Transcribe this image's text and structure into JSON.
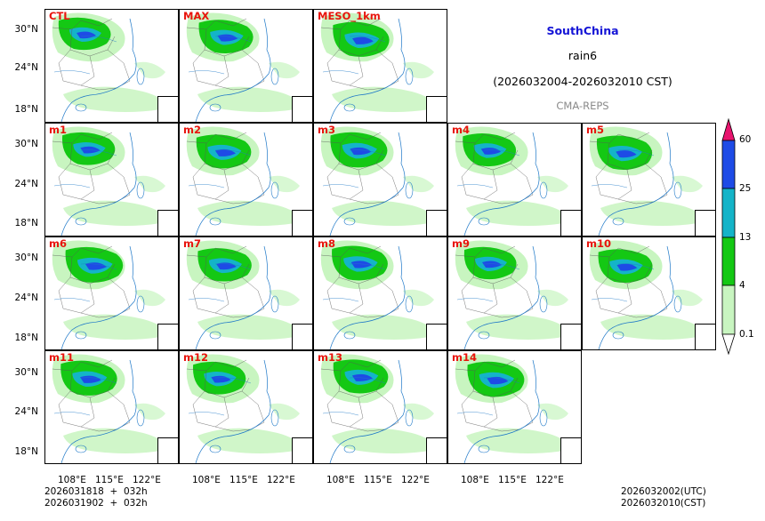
{
  "region": "SouthChina",
  "variable": "rain6",
  "period": "(2026032004-2026032010 CST)",
  "model": "CMA-REPS",
  "panels": [
    {
      "label": "CTL"
    },
    {
      "label": "MAX"
    },
    {
      "label": "MESO_1km"
    },
    {
      "label": "m1"
    },
    {
      "label": "m2"
    },
    {
      "label": "m3"
    },
    {
      "label": "m4"
    },
    {
      "label": "m5"
    },
    {
      "label": "m6"
    },
    {
      "label": "m7"
    },
    {
      "label": "m8"
    },
    {
      "label": "m9"
    },
    {
      "label": "m10"
    },
    {
      "label": "m11"
    },
    {
      "label": "m12"
    },
    {
      "label": "m13"
    },
    {
      "label": "m14"
    }
  ],
  "lat_ticks": [
    "30°N",
    "24°N",
    "18°N"
  ],
  "lon_ticks": [
    "108°E",
    "115°E",
    "122°E"
  ],
  "colorbar": {
    "levels": [
      "60",
      "25",
      "13",
      "4",
      "0.1"
    ],
    "colors": {
      "over": "#e8146e",
      "band_25_60": "#1e4be6",
      "band_13_25": "#14b4c8",
      "band_4_13": "#14c814",
      "band_01_4": "#c8f5c0"
    }
  },
  "footer": {
    "init_line1": "2026031818  +  032h",
    "init_line2": "2026031902  +  032h",
    "valid_utc": "2026032002(UTC)",
    "valid_cst": "2026032010(CST)"
  }
}
